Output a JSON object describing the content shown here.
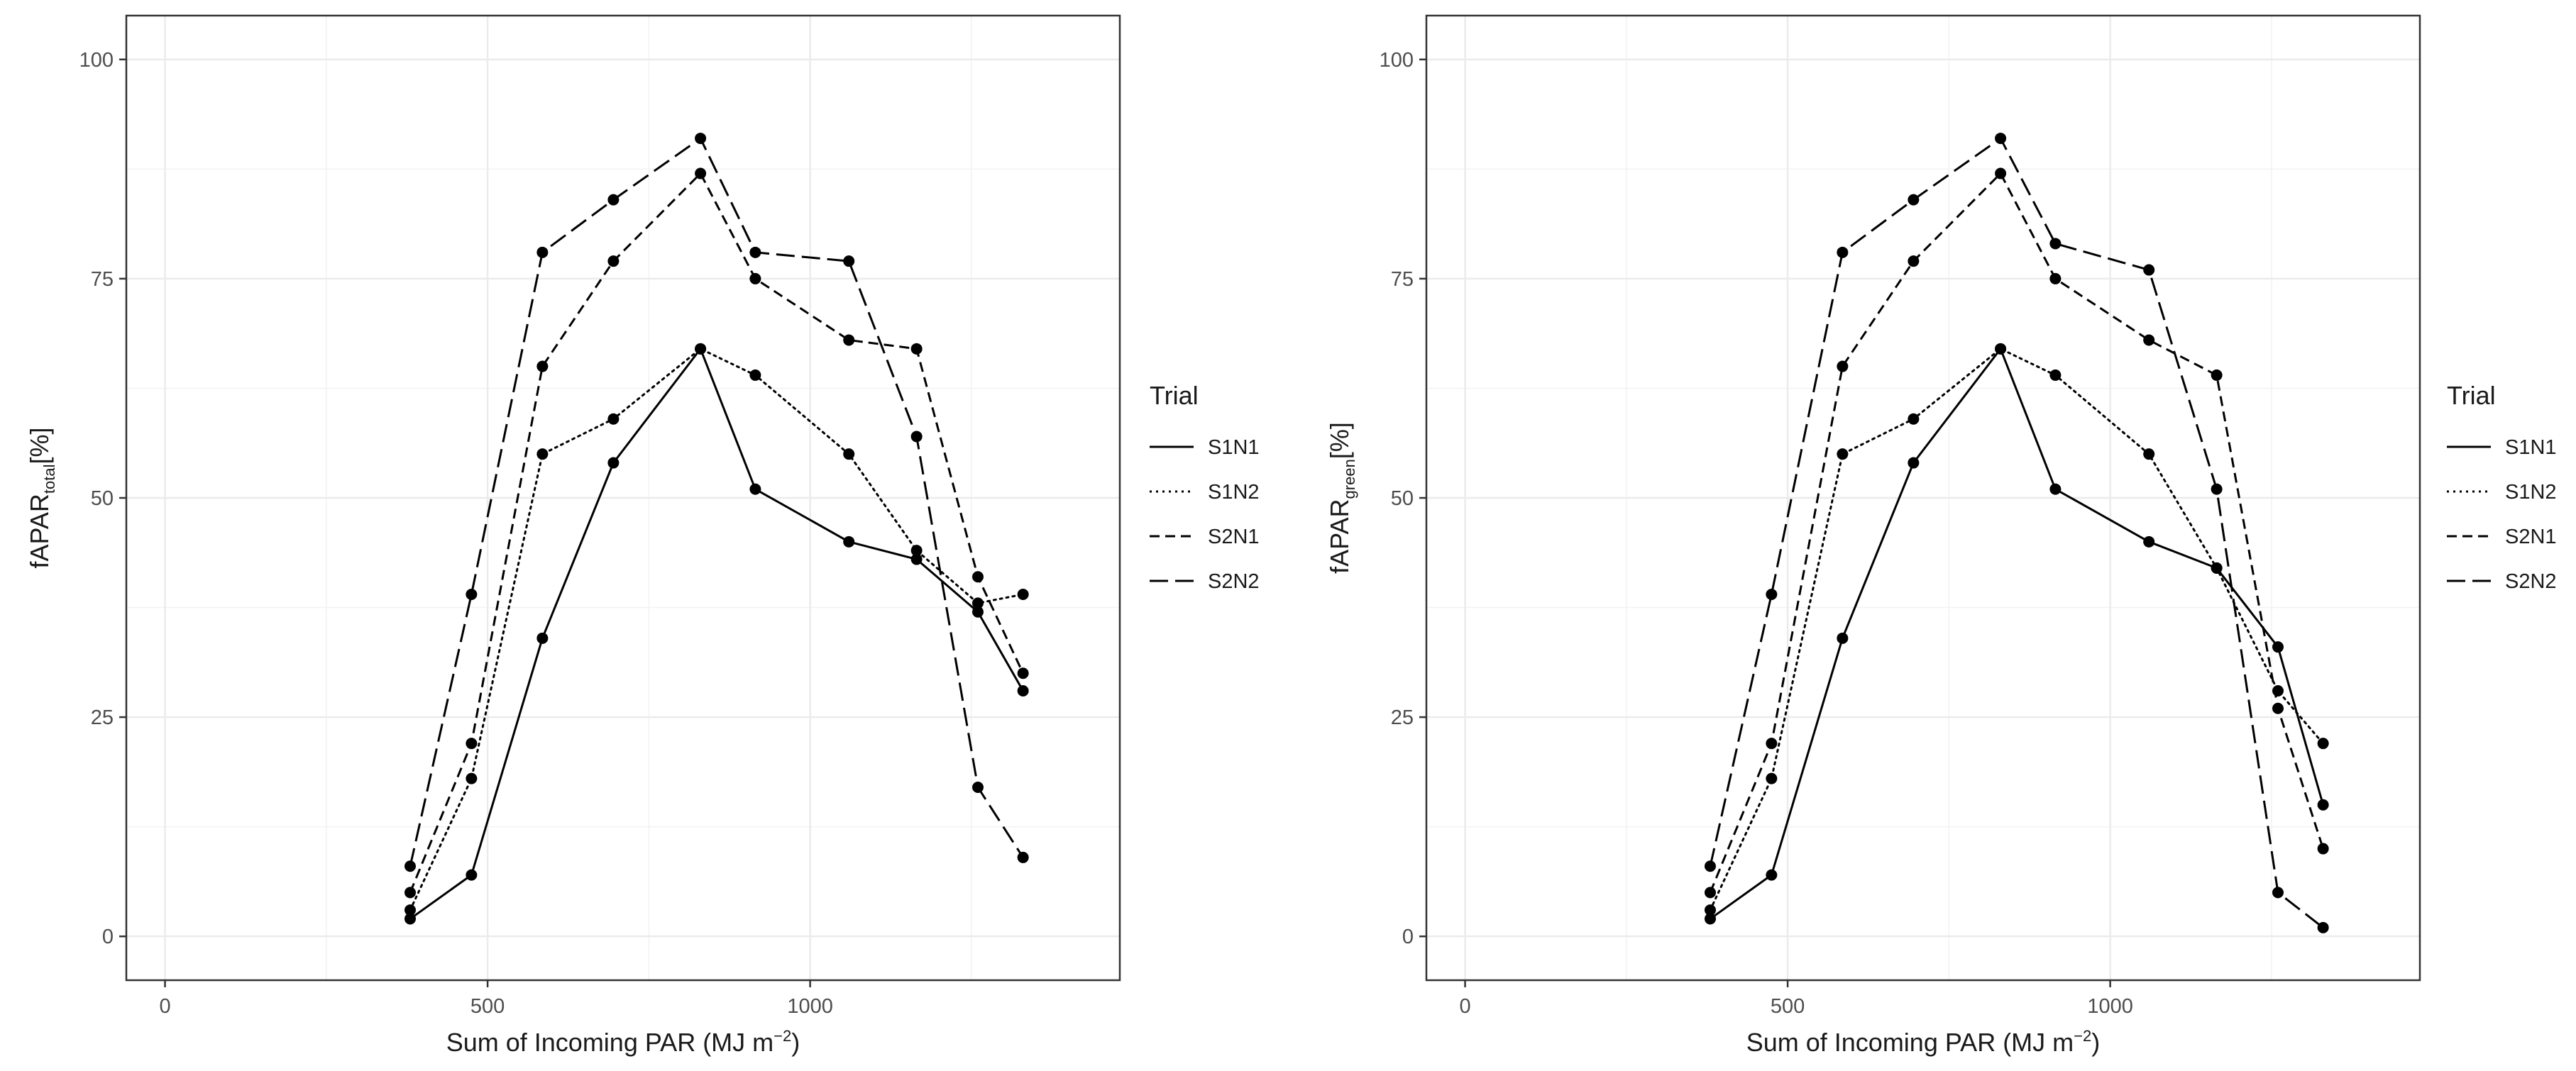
{
  "chart_data": [
    {
      "type": "line",
      "xlabel": "Sum of Incoming PAR (MJ m",
      "xlabel_sup": "−2",
      "xlabel_tail": ")",
      "ylabel_main": "fAPAR",
      "ylabel_sub": "total",
      "ylabel_tail": "[%]",
      "xlim": [
        -60,
        1480
      ],
      "ylim": [
        -5,
        105
      ],
      "xticks": [
        0,
        500,
        1000
      ],
      "xtick_labels": [
        "0",
        "500",
        "1000"
      ],
      "yticks": [
        0,
        25,
        50,
        75,
        100
      ],
      "ytick_labels": [
        "0",
        "25",
        "50",
        "75",
        "100"
      ],
      "grid": true,
      "legend_title": "Trial",
      "legend_position": "right",
      "series": [
        {
          "name": "S1N1",
          "linetype": "solid",
          "x": [
            380,
            475,
            585,
            695,
            830,
            915,
            1060,
            1165,
            1260,
            1330
          ],
          "y": [
            2,
            7,
            34,
            54,
            67,
            51,
            45,
            43,
            37,
            28
          ]
        },
        {
          "name": "S1N2",
          "linetype": "dotted",
          "x": [
            380,
            475,
            585,
            695,
            830,
            915,
            1060,
            1165,
            1260,
            1330
          ],
          "y": [
            3,
            18,
            55,
            59,
            67,
            64,
            55,
            44,
            38,
            39
          ]
        },
        {
          "name": "S2N1",
          "linetype": "dashed",
          "x": [
            380,
            475,
            585,
            695,
            830,
            915,
            1060,
            1165,
            1260,
            1330
          ],
          "y": [
            5,
            22,
            65,
            77,
            87,
            75,
            68,
            67,
            41,
            30
          ]
        },
        {
          "name": "S2N2",
          "linetype": "longdash",
          "x": [
            380,
            475,
            585,
            695,
            830,
            915,
            1060,
            1165,
            1260,
            1330
          ],
          "y": [
            8,
            39,
            78,
            84,
            91,
            78,
            77,
            57,
            17,
            9
          ]
        }
      ]
    },
    {
      "type": "line",
      "xlabel": "Sum of Incoming PAR (MJ m",
      "xlabel_sup": "−2",
      "xlabel_tail": ")",
      "ylabel_main": "fAPAR",
      "ylabel_sub": "green",
      "ylabel_tail": "[%]",
      "xlim": [
        -60,
        1480
      ],
      "ylim": [
        -5,
        105
      ],
      "xticks": [
        0,
        500,
        1000
      ],
      "xtick_labels": [
        "0",
        "500",
        "1000"
      ],
      "yticks": [
        0,
        25,
        50,
        75,
        100
      ],
      "ytick_labels": [
        "0",
        "25",
        "50",
        "75",
        "100"
      ],
      "grid": true,
      "legend_title": "Trial",
      "legend_position": "right",
      "series": [
        {
          "name": "S1N1",
          "linetype": "solid",
          "x": [
            380,
            475,
            585,
            695,
            830,
            915,
            1060,
            1165,
            1260,
            1330
          ],
          "y": [
            2,
            7,
            34,
            54,
            67,
            51,
            45,
            42,
            33,
            15
          ]
        },
        {
          "name": "S1N2",
          "linetype": "dotted",
          "x": [
            380,
            475,
            585,
            695,
            830,
            915,
            1060,
            1165,
            1260,
            1330
          ],
          "y": [
            3,
            18,
            55,
            59,
            67,
            64,
            55,
            42,
            28,
            22
          ]
        },
        {
          "name": "S2N1",
          "linetype": "dashed",
          "x": [
            380,
            475,
            585,
            695,
            830,
            915,
            1060,
            1165,
            1260,
            1330
          ],
          "y": [
            5,
            22,
            65,
            77,
            87,
            75,
            68,
            64,
            26,
            10
          ]
        },
        {
          "name": "S2N2",
          "linetype": "longdash",
          "x": [
            380,
            475,
            585,
            695,
            830,
            915,
            1060,
            1165,
            1260,
            1330
          ],
          "y": [
            8,
            39,
            78,
            84,
            91,
            79,
            76,
            51,
            5,
            1
          ]
        }
      ]
    }
  ]
}
